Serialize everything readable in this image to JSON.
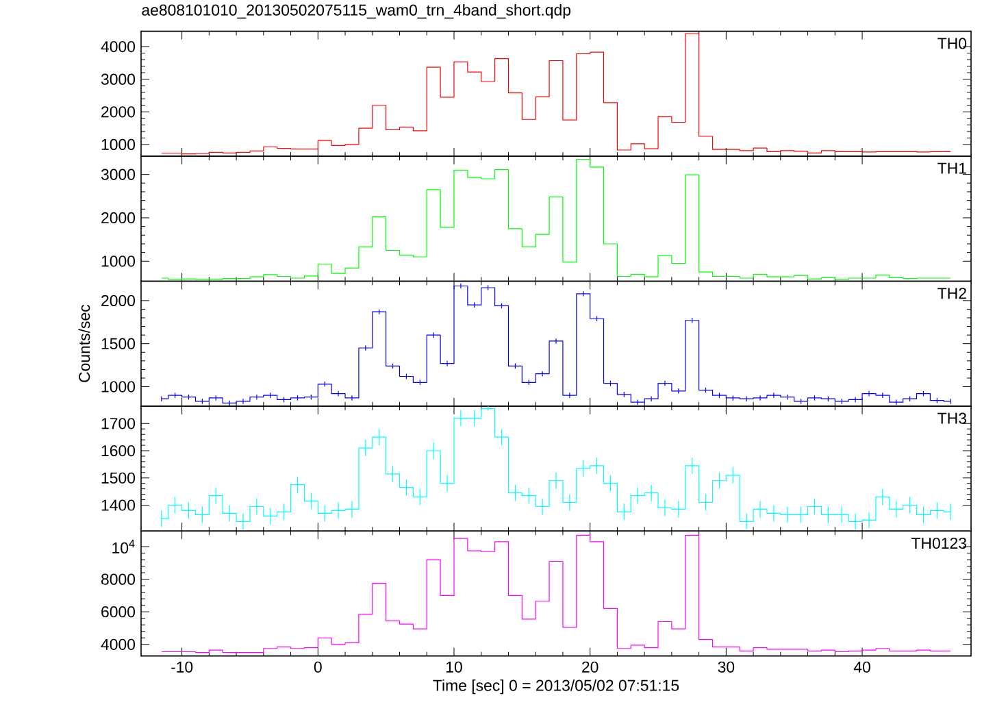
{
  "chart_data": [
    {
      "type": "step",
      "title": "ae808101010_20130502075115_wam0_trn_4band_short.qdp",
      "x": [
        -11.5,
        -10.5,
        -9.5,
        -8.5,
        -7.5,
        -6.5,
        -5.5,
        -4.5,
        -3.5,
        -2.5,
        -1.5,
        -0.5,
        0.5,
        1.5,
        2.5,
        3.5,
        4.5,
        5.5,
        6.5,
        7.5,
        8.5,
        9.5,
        10.5,
        11.5,
        12.5,
        13.5,
        14.5,
        15.5,
        16.5,
        17.5,
        18.5,
        19.5,
        20.5,
        21.5,
        22.5,
        23.5,
        24.5,
        25.5,
        26.5,
        27.5,
        28.5,
        29.5,
        30.5,
        31.5,
        32.5,
        33.5,
        34.5,
        35.5,
        36.5,
        37.5,
        38.5,
        39.5,
        40.5,
        41.5,
        42.5,
        43.5,
        44.5,
        45.5,
        46.5
      ],
      "xlim": [
        -13,
        48
      ],
      "xticks": [
        -10,
        0,
        10,
        20,
        30,
        40
      ],
      "ylim": [
        640,
        4470
      ],
      "yticks": [
        1000,
        2000,
        3000,
        4000
      ],
      "tick_labels": "y",
      "series": [
        {
          "name": "TH0",
          "color": "#ff0000",
          "values": [
            730,
            730,
            710,
            720,
            760,
            740,
            760,
            800,
            930,
            880,
            860,
            860,
            1120,
            970,
            1000,
            1500,
            2200,
            1450,
            1530,
            1420,
            3370,
            2450,
            3530,
            3220,
            2930,
            3630,
            2580,
            1770,
            2460,
            3570,
            1750,
            3780,
            3830,
            2280,
            830,
            1020,
            870,
            1850,
            1680,
            4400,
            1250,
            850,
            850,
            810,
            890,
            780,
            810,
            790,
            740,
            810,
            780,
            780,
            770,
            780,
            780,
            780,
            770,
            780,
            780
          ]
        }
      ]
    },
    {
      "type": "step",
      "x": [
        -11.5,
        -10.5,
        -9.5,
        -8.5,
        -7.5,
        -6.5,
        -5.5,
        -4.5,
        -3.5,
        -2.5,
        -1.5,
        -0.5,
        0.5,
        1.5,
        2.5,
        3.5,
        4.5,
        5.5,
        6.5,
        7.5,
        8.5,
        9.5,
        10.5,
        11.5,
        12.5,
        13.5,
        14.5,
        15.5,
        16.5,
        17.5,
        18.5,
        19.5,
        20.5,
        21.5,
        22.5,
        23.5,
        24.5,
        25.5,
        26.5,
        27.5,
        28.5,
        29.5,
        30.5,
        31.5,
        32.5,
        33.5,
        34.5,
        35.5,
        36.5,
        37.5,
        38.5,
        39.5,
        40.5,
        41.5,
        42.5,
        43.5,
        44.5,
        45.5,
        46.5
      ],
      "xlim": [
        -13,
        48
      ],
      "xticks": [
        -10,
        0,
        10,
        20,
        30,
        40
      ],
      "ylim": [
        540,
        3420
      ],
      "yticks": [
        1000,
        2000,
        3000
      ],
      "tick_labels": "y",
      "series": [
        {
          "name": "TH1",
          "color": "#00ff00",
          "values": [
            610,
            580,
            590,
            580,
            580,
            600,
            600,
            640,
            690,
            650,
            610,
            660,
            930,
            720,
            840,
            1330,
            2020,
            1250,
            1140,
            1100,
            2650,
            1780,
            3100,
            2930,
            2900,
            3110,
            1750,
            1330,
            1620,
            2480,
            980,
            3350,
            3170,
            1400,
            650,
            700,
            640,
            1130,
            950,
            2990,
            750,
            650,
            650,
            610,
            700,
            640,
            640,
            670,
            590,
            620,
            580,
            610,
            610,
            680,
            620,
            600,
            610,
            610,
            610
          ]
        }
      ]
    },
    {
      "type": "step",
      "ylabel": "Counts/sec",
      "x": [
        -11.5,
        -10.5,
        -9.5,
        -8.5,
        -7.5,
        -6.5,
        -5.5,
        -4.5,
        -3.5,
        -2.5,
        -1.5,
        -0.5,
        0.5,
        1.5,
        2.5,
        3.5,
        4.5,
        5.5,
        6.5,
        7.5,
        8.5,
        9.5,
        10.5,
        11.5,
        12.5,
        13.5,
        14.5,
        15.5,
        16.5,
        17.5,
        18.5,
        19.5,
        20.5,
        21.5,
        22.5,
        23.5,
        24.5,
        25.5,
        26.5,
        27.5,
        28.5,
        29.5,
        30.5,
        31.5,
        32.5,
        33.5,
        34.5,
        35.5,
        36.5,
        37.5,
        38.5,
        39.5,
        40.5,
        41.5,
        42.5,
        43.5,
        44.5,
        45.5,
        46.5
      ],
      "xlim": [
        -13,
        48
      ],
      "xticks": [
        -10,
        0,
        10,
        20,
        30,
        40
      ],
      "ylim": [
        775,
        2226
      ],
      "yticks": [
        1000,
        1500,
        2000
      ],
      "tick_labels": "y",
      "series": [
        {
          "name": "TH2",
          "color": "#0000ff",
          "values": [
            860,
            900,
            880,
            830,
            870,
            810,
            830,
            880,
            900,
            850,
            870,
            880,
            1030,
            920,
            870,
            1450,
            1870,
            1240,
            1120,
            1050,
            1600,
            1270,
            2170,
            1950,
            2150,
            1940,
            1240,
            1050,
            1150,
            1530,
            900,
            2080,
            1790,
            1040,
            910,
            820,
            860,
            1040,
            950,
            1770,
            960,
            900,
            870,
            860,
            870,
            900,
            880,
            830,
            870,
            860,
            830,
            850,
            920,
            900,
            820,
            860,
            920,
            840,
            830
          ],
          "errors": [
            30,
            30,
            30,
            30,
            30,
            30,
            30,
            30,
            30,
            30,
            30,
            30,
            30,
            30,
            30,
            30,
            30,
            30,
            30,
            30,
            30,
            30,
            30,
            30,
            30,
            30,
            30,
            30,
            30,
            30,
            30,
            30,
            30,
            30,
            30,
            30,
            30,
            30,
            30,
            30,
            30,
            30,
            30,
            30,
            30,
            30,
            30,
            30,
            30,
            30,
            30,
            30,
            30,
            30,
            30,
            30,
            30,
            30,
            30
          ]
        }
      ]
    },
    {
      "type": "step",
      "x": [
        -11.5,
        -10.5,
        -9.5,
        -8.5,
        -7.5,
        -6.5,
        -5.5,
        -4.5,
        -3.5,
        -2.5,
        -1.5,
        -0.5,
        0.5,
        1.5,
        2.5,
        3.5,
        4.5,
        5.5,
        6.5,
        7.5,
        8.5,
        9.5,
        10.5,
        11.5,
        12.5,
        13.5,
        14.5,
        15.5,
        16.5,
        17.5,
        18.5,
        19.5,
        20.5,
        21.5,
        22.5,
        23.5,
        24.5,
        25.5,
        26.5,
        27.5,
        28.5,
        29.5,
        30.5,
        31.5,
        32.5,
        33.5,
        34.5,
        35.5,
        36.5,
        37.5,
        38.5,
        39.5,
        40.5,
        41.5,
        42.5,
        43.5,
        44.5,
        45.5,
        46.5
      ],
      "xlim": [
        -13,
        48
      ],
      "xticks": [
        -10,
        0,
        10,
        20,
        30,
        40
      ],
      "ylim": [
        1305,
        1764
      ],
      "yticks": [
        1400,
        1500,
        1600,
        1700
      ],
      "tick_labels": "y",
      "series": [
        {
          "name": "TH3",
          "color": "#00ffff",
          "values": [
            1350,
            1400,
            1380,
            1365,
            1435,
            1370,
            1340,
            1395,
            1360,
            1375,
            1475,
            1415,
            1370,
            1380,
            1385,
            1610,
            1650,
            1515,
            1465,
            1430,
            1600,
            1480,
            1720,
            1720,
            1755,
            1650,
            1445,
            1435,
            1395,
            1490,
            1410,
            1535,
            1545,
            1480,
            1375,
            1435,
            1445,
            1390,
            1385,
            1545,
            1410,
            1490,
            1510,
            1340,
            1385,
            1370,
            1365,
            1365,
            1395,
            1365,
            1365,
            1340,
            1345,
            1430,
            1385,
            1400,
            1365,
            1380,
            1375
          ],
          "errors": [
            30,
            30,
            30,
            30,
            30,
            30,
            30,
            30,
            30,
            30,
            30,
            30,
            30,
            30,
            30,
            30,
            30,
            30,
            30,
            30,
            30,
            30,
            30,
            30,
            8,
            30,
            30,
            30,
            30,
            30,
            30,
            30,
            30,
            30,
            30,
            30,
            30,
            30,
            30,
            30,
            30,
            30,
            30,
            30,
            30,
            30,
            30,
            30,
            30,
            30,
            30,
            30,
            30,
            30,
            30,
            30,
            30,
            30,
            30
          ]
        }
      ]
    },
    {
      "type": "step",
      "xlabel": "Time [sec] 0 = 2013/05/02 07:51:15",
      "x": [
        -11.5,
        -10.5,
        -9.5,
        -8.5,
        -7.5,
        -6.5,
        -5.5,
        -4.5,
        -3.5,
        -2.5,
        -1.5,
        -0.5,
        0.5,
        1.5,
        2.5,
        3.5,
        4.5,
        5.5,
        6.5,
        7.5,
        8.5,
        9.5,
        10.5,
        11.5,
        12.5,
        13.5,
        14.5,
        15.5,
        16.5,
        17.5,
        18.5,
        19.5,
        20.5,
        21.5,
        22.5,
        23.5,
        24.5,
        25.5,
        26.5,
        27.5,
        28.5,
        29.5,
        30.5,
        31.5,
        32.5,
        33.5,
        34.5,
        35.5,
        36.5,
        37.5,
        38.5,
        39.5,
        40.5,
        41.5,
        42.5,
        43.5,
        44.5,
        45.5,
        46.5
      ],
      "xlim": [
        -13,
        48
      ],
      "xticks": [
        -10,
        0,
        10,
        20,
        30,
        40
      ],
      "ylim": [
        3290,
        10960
      ],
      "yticks": [
        4000,
        6000,
        8000,
        {
          "value": 10000,
          "label": "10$^{4}$"
        }
      ],
      "series": [
        {
          "name": "TH0123",
          "color": "#ff00ff",
          "values": [
            3550,
            3550,
            3550,
            3500,
            3650,
            3500,
            3500,
            3500,
            3750,
            3850,
            3750,
            3800,
            4400,
            4000,
            4100,
            5850,
            7750,
            5450,
            5250,
            4950,
            9200,
            7000,
            10500,
            9750,
            9700,
            10300,
            7000,
            5550,
            6650,
            9100,
            5050,
            10700,
            10300,
            6200,
            3750,
            3950,
            3800,
            5400,
            4950,
            10700,
            4300,
            3850,
            3850,
            3600,
            3800,
            3700,
            3700,
            3700,
            3600,
            3650,
            3550,
            3600,
            3650,
            3750,
            3600,
            3600,
            3650,
            3600,
            3600
          ]
        }
      ]
    }
  ]
}
